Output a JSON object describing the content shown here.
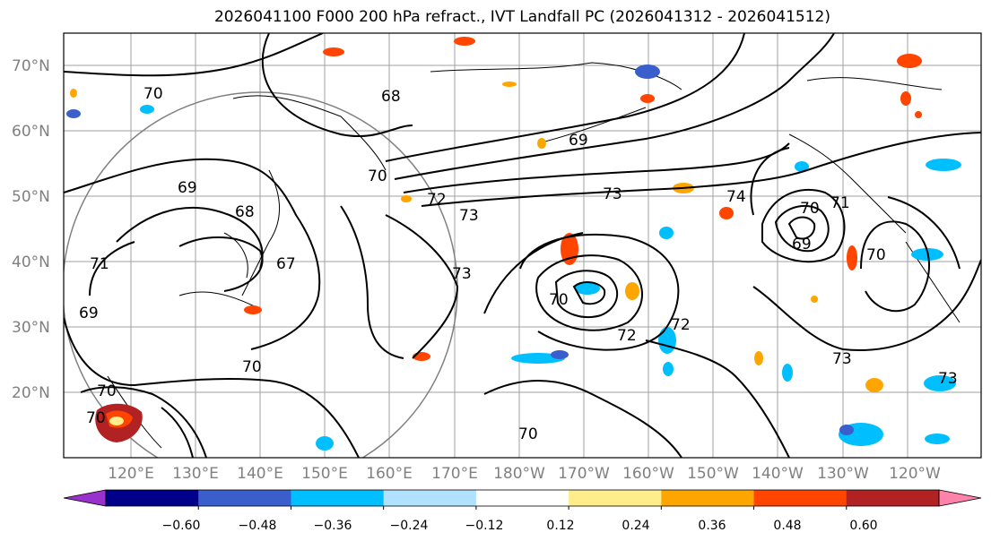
{
  "title": "2026041100 F000 200 hPa refract., IVT Landfall PC (2026041312 - 2026041512)",
  "map": {
    "lat_labels": [
      "70°N",
      "60°N",
      "50°N",
      "40°N",
      "30°N",
      "20°N"
    ],
    "lon_labels": [
      "120°E",
      "130°E",
      "140°E",
      "150°E",
      "160°E",
      "170°E",
      "180°W",
      "170°W",
      "160°W",
      "150°W",
      "140°W",
      "130°W",
      "120°W"
    ],
    "contour_labels": [
      "70",
      "68",
      "69",
      "68",
      "71",
      "67",
      "69",
      "70",
      "72",
      "73",
      "69",
      "73",
      "74",
      "70",
      "71",
      "69",
      "73",
      "70",
      "72",
      "72",
      "70",
      "70",
      "70",
      "70",
      "73",
      "73",
      "70"
    ]
  },
  "colorbar": {
    "colors": [
      "#9932cc",
      "#00008b",
      "#3a5fcd",
      "#00bfff",
      "#b0e2ff",
      "#ffffff",
      "#ffec8b",
      "#ffa500",
      "#ff4500",
      "#b22222",
      "#ff82ab"
    ],
    "tick_labels": [
      "−0.60",
      "−0.48",
      "−0.36",
      "−0.24",
      "−0.12",
      "0.12",
      "0.24",
      "0.36",
      "0.48",
      "0.60"
    ]
  }
}
